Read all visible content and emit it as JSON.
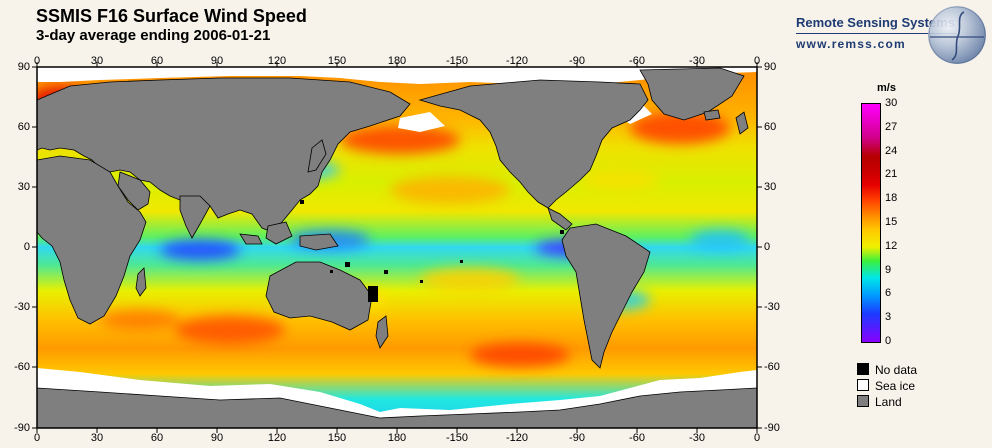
{
  "header": {
    "title": "SSMIS F16 Surface Wind Speed",
    "subtitle": "3-day average ending 2006-01-21"
  },
  "brand": {
    "name": "Remote Sensing Systems",
    "url": "www.remss.com",
    "logo_icon": "globe-logo-icon"
  },
  "map": {
    "projection": "equirectangular",
    "lon_range": [
      0,
      360
    ],
    "lat_range": [
      -90,
      90
    ],
    "lon_tick_labels": [
      "0",
      "30",
      "60",
      "90",
      "120",
      "150",
      "180",
      "-150",
      "-120",
      "-90",
      "-60",
      "-30",
      "0"
    ],
    "lat_tick_labels": [
      "90",
      "60",
      "30",
      "0",
      "-30",
      "-60",
      "-90"
    ],
    "land_color": "#7f7f7f",
    "sea_ice_color": "#ffffff",
    "no_data_color": "#000000"
  },
  "colorbar": {
    "unit": "m/s",
    "labels": [
      "30",
      "27",
      "24",
      "21",
      "18",
      "15",
      "12",
      "9",
      "6",
      "3",
      "0"
    ],
    "min": 0,
    "max": 30
  },
  "legend": [
    {
      "label": "No data",
      "color": "#000000"
    },
    {
      "label": "Sea ice",
      "color": "#ffffff"
    },
    {
      "label": "Land",
      "color": "#7f7f7f"
    }
  ]
}
